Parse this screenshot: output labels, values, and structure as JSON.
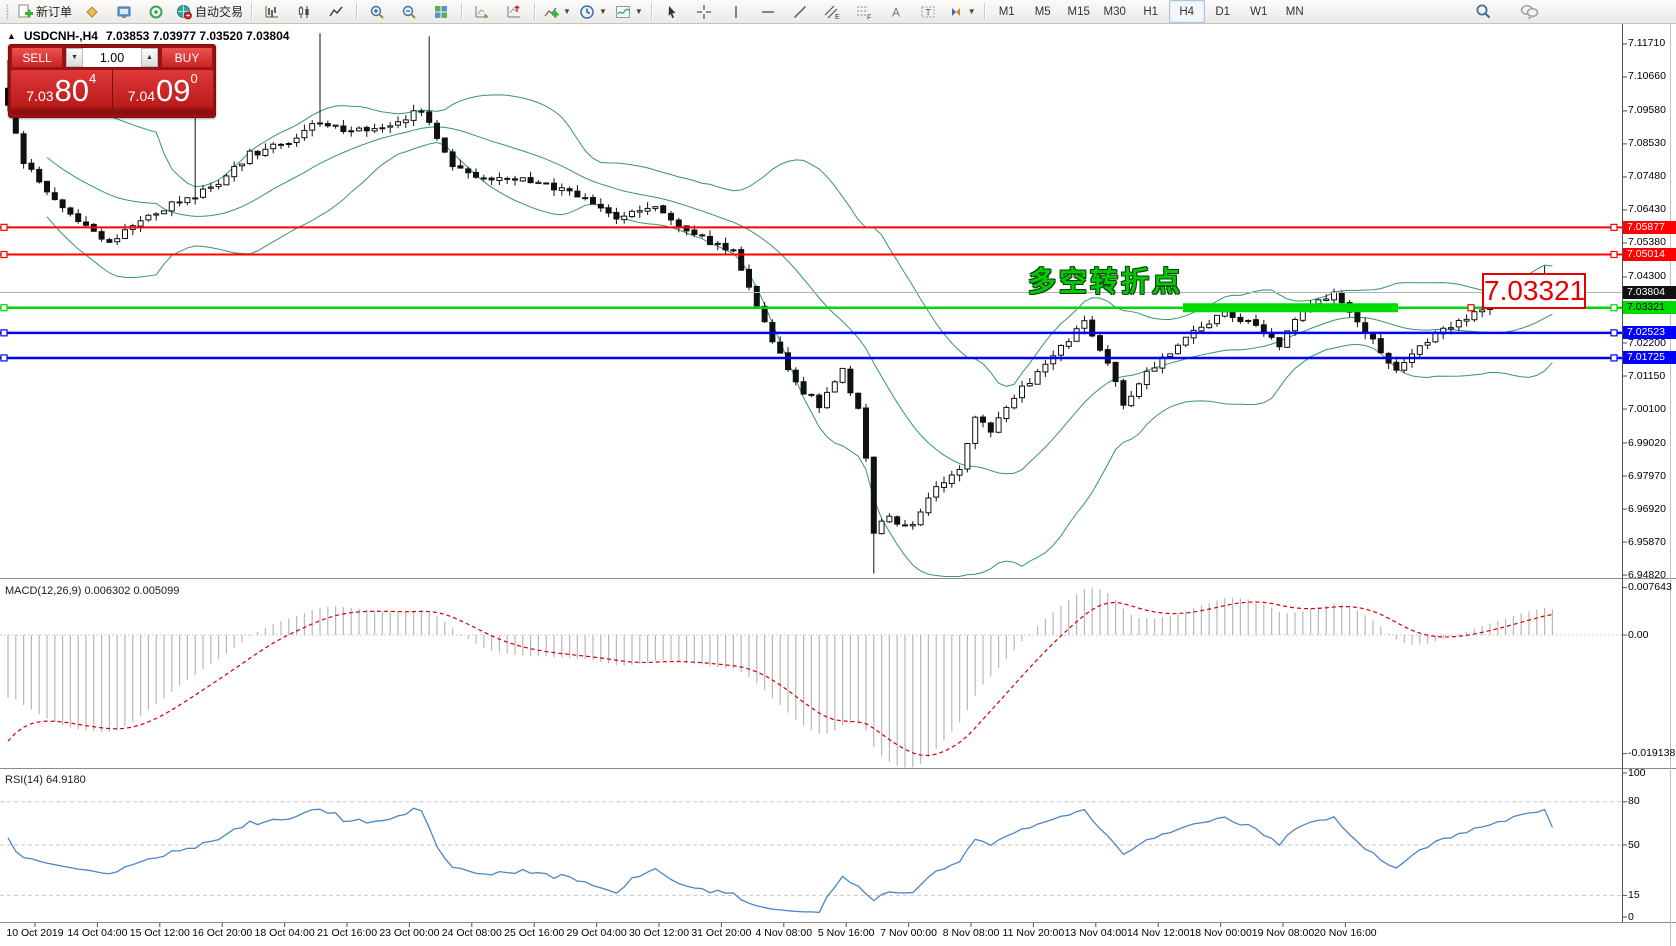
{
  "toolbar": {
    "new_order_label": "新订单",
    "autotrading_label": "自动交易",
    "timeframes": [
      "M1",
      "M5",
      "M15",
      "M30",
      "H1",
      "H4",
      "D1",
      "W1",
      "MN"
    ],
    "active_timeframe": "H4",
    "glyphs": {
      "text_tool": "A",
      "label_tool": "T",
      "channel_tool": "E",
      "fibo_tool": "F"
    }
  },
  "symbol_bar": {
    "collapse_glyph": "▲",
    "symbol": "USDCNH-,H4",
    "ohlc_text": "7.03853 7.03977 7.03520 7.03804"
  },
  "trade_panel": {
    "sell_label": "SELL",
    "buy_label": "BUY",
    "volume": "1.00",
    "sell_small": "7.03",
    "sell_big": "80",
    "sell_sup": "4",
    "buy_small": "7.04",
    "buy_big": "09",
    "buy_sup": "0"
  },
  "annotations": {
    "turning_point_text": "多空转折点",
    "big_price_label": "7.03321"
  },
  "chart_data": {
    "type": "candlestick",
    "symbol": "USDCNH-",
    "timeframe": "H4",
    "title": "USDCNH-,H4 7.03853 7.03977 7.03520 7.03804",
    "ohlc": {
      "open": 7.03853,
      "high": 7.03977,
      "low": 7.0352,
      "close": 7.03804
    },
    "current_price": 7.03804,
    "price_axis_ticks": [
      "7.11710",
      "7.10660",
      "7.09580",
      "7.08530",
      "7.07480",
      "7.06430",
      "7.05380",
      "7.04300",
      "7.02200",
      "7.01150",
      "7.00100",
      "6.99020",
      "6.97970",
      "6.96920",
      "6.95870",
      "6.94820"
    ],
    "price_axis_range": {
      "top": 7.1234,
      "bottom": 6.9473
    },
    "horizontal_lines": [
      {
        "price": 7.05877,
        "label": "7.05877",
        "color": "#ff0000",
        "width": 2
      },
      {
        "price": 7.05014,
        "label": "7.05014",
        "color": "#ff0000",
        "width": 2
      },
      {
        "price": 7.03321,
        "label": "7.03321",
        "color": "#00d800",
        "width": 2.5
      },
      {
        "price": 7.02523,
        "label": "7.02523",
        "color": "#0000ff",
        "width": 2.5
      },
      {
        "price": 7.01725,
        "label": "7.01725",
        "color": "#0000ff",
        "width": 2.5
      }
    ],
    "current_price_tag": {
      "label": "7.03804",
      "bg": "#111111"
    },
    "green_tag": {
      "label": "7.03321",
      "bg": "#00dc00",
      "text": "#000000"
    },
    "time_axis_labels": [
      "10 Oct 2019",
      "14 Oct 04:00",
      "15 Oct 12:00",
      "16 Oct 20:00",
      "18 Oct 04:00",
      "21 Oct 16:00",
      "23 Oct 00:00",
      "24 Oct 08:00",
      "25 Oct 16:00",
      "29 Oct 04:00",
      "30 Oct 12:00",
      "31 Oct 20:00",
      "4 Nov 08:00",
      "5 Nov 16:00",
      "7 Nov 00:00",
      "8 Nov 08:00",
      "11 Nov 20:00",
      "13 Nov 04:00",
      "14 Nov 12:00",
      "18 Nov 00:00",
      "19 Nov 08:00",
      "20 Nov 16:00"
    ],
    "bars_count": 199,
    "price_path_waypoints": [
      [
        0,
        7.097
      ],
      [
        2,
        7.08
      ],
      [
        5,
        7.071
      ],
      [
        9,
        7.06
      ],
      [
        13,
        7.0535
      ],
      [
        17,
        7.061
      ],
      [
        21,
        7.066
      ],
      [
        26,
        7.071
      ],
      [
        31,
        7.082
      ],
      [
        36,
        7.0865
      ],
      [
        40,
        7.0925
      ],
      [
        44,
        7.089
      ],
      [
        49,
        7.0915
      ],
      [
        53,
        7.0965
      ],
      [
        55,
        7.088
      ],
      [
        57,
        7.0775
      ],
      [
        62,
        7.0745
      ],
      [
        68,
        7.073
      ],
      [
        74,
        7.0685
      ],
      [
        78,
        7.0615
      ],
      [
        83,
        7.0655
      ],
      [
        88,
        7.056
      ],
      [
        93,
        7.0515
      ],
      [
        96,
        7.034
      ],
      [
        99,
        7.018
      ],
      [
        101,
        7.009
      ],
      [
        104,
        7.0025
      ],
      [
        107,
        7.013
      ],
      [
        109,
        7.001
      ],
      [
        110,
        6.986
      ],
      [
        111,
        6.962
      ],
      [
        113,
        6.9665
      ],
      [
        116,
        6.9635
      ],
      [
        119,
        6.976
      ],
      [
        122,
        6.982
      ],
      [
        124,
        6.9995
      ],
      [
        126,
        6.9935
      ],
      [
        129,
        7.005
      ],
      [
        132,
        7.0125
      ],
      [
        135,
        7.021
      ],
      [
        138,
        7.028
      ],
      [
        141,
        7.016
      ],
      [
        143,
        7.0015
      ],
      [
        146,
        7.013
      ],
      [
        149,
        7.019
      ],
      [
        152,
        7.026
      ],
      [
        156,
        7.031
      ],
      [
        160,
        7.028
      ],
      [
        163,
        7.0215
      ],
      [
        166,
        7.032
      ],
      [
        170,
        7.038
      ],
      [
        174,
        7.026
      ],
      [
        178,
        7.013
      ],
      [
        182,
        7.023
      ],
      [
        186,
        7.029
      ],
      [
        190,
        7.034
      ],
      [
        194,
        7.039
      ],
      [
        197,
        7.043
      ],
      [
        198,
        7.03804
      ]
    ],
    "spikes": {
      "0": {
        "high": 7.112
      },
      "24": {
        "high": 7.117
      },
      "40": {
        "high": 7.1205
      },
      "54": {
        "high": 7.1195
      },
      "111": {
        "low": 6.9487
      },
      "197": {
        "high": 7.0465
      }
    },
    "bollinger": {
      "period": 20,
      "deviation": 2,
      "color": "#339966"
    },
    "candle_colors": {
      "bull_fill": "#ffffff",
      "bear_fill": "#111111",
      "outline": "#111111"
    },
    "macd": {
      "label": "MACD(12,26,9)",
      "main_value": "0.006302",
      "signal_value": "0.005099",
      "axis_ticks": [
        "0.007643",
        "0.00",
        "-0.019138"
      ],
      "hist_color": "#b8b8b8",
      "signal_color": "#d40000"
    },
    "rsi": {
      "label": "RSI(14)",
      "value": "64.9180",
      "axis_ticks": [
        "100",
        "80",
        "50",
        "15",
        "0"
      ],
      "levels": [
        80,
        50,
        15
      ],
      "line_color": "#4a86c8"
    }
  }
}
